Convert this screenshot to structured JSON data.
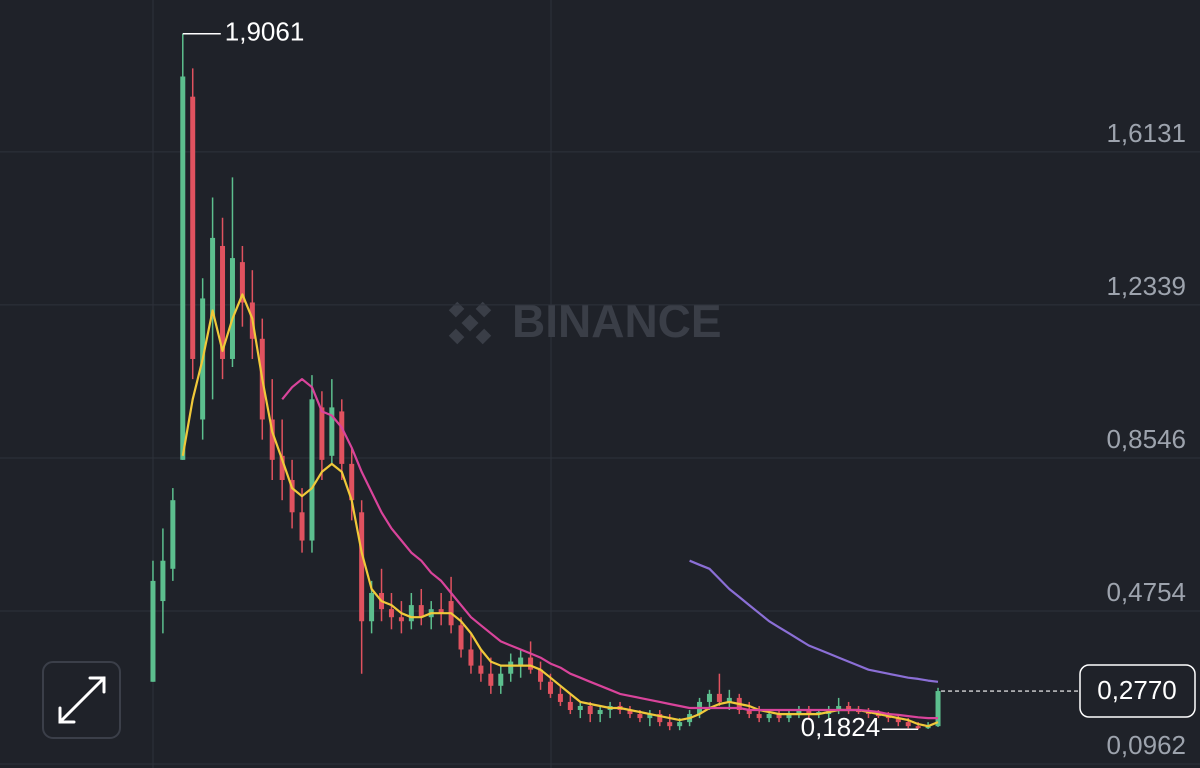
{
  "chart_data": {
    "type": "candlestick",
    "watermark": "BINANCE",
    "categories": [
      null,
      null,
      null,
      null,
      null,
      null,
      null,
      null,
      null,
      null,
      null,
      null,
      null,
      null,
      null,
      null,
      null,
      null,
      null,
      null,
      null,
      null,
      null,
      null,
      null,
      null,
      null,
      null,
      null,
      null,
      null,
      null,
      null,
      null,
      null,
      null,
      null,
      null,
      null,
      null,
      null,
      null,
      null,
      null,
      null,
      null,
      null,
      null,
      null,
      null,
      null,
      null,
      null,
      null,
      null,
      null,
      null,
      null,
      null,
      null,
      null,
      null,
      null,
      null,
      null,
      null,
      null,
      null,
      null,
      null,
      null,
      null,
      null,
      null,
      null,
      null,
      null,
      null,
      null,
      null
    ],
    "open": [
      0.3,
      0.5,
      0.58,
      0.85,
      1.75,
      0.95,
      1.2,
      1.38,
      1.1,
      1.34,
      1.24,
      1.15,
      0.95,
      0.86,
      0.8,
      0.72,
      0.65,
      0.98,
      0.86,
      0.97,
      0.84,
      0.72,
      0.45,
      0.52,
      0.48,
      0.46,
      0.45,
      0.49,
      0.46,
      0.48,
      0.5,
      0.44,
      0.38,
      0.34,
      0.32,
      0.29,
      0.32,
      0.34,
      0.36,
      0.33,
      0.3,
      0.27,
      0.25,
      0.23,
      0.24,
      0.22,
      0.23,
      0.24,
      0.23,
      0.22,
      0.21,
      0.22,
      0.2,
      0.19,
      0.2,
      0.22,
      0.25,
      0.27,
      0.25,
      0.26,
      0.23,
      0.22,
      0.21,
      0.22,
      0.21,
      0.22,
      0.23,
      0.22,
      0.22,
      0.23,
      0.24,
      0.23,
      0.225,
      0.22,
      0.215,
      0.21,
      0.2,
      0.19,
      0.185,
      0.19
    ],
    "high": [
      0.6,
      0.68,
      0.78,
      1.9061,
      1.82,
      1.3,
      1.5,
      1.45,
      1.55,
      1.38,
      1.32,
      1.2,
      1.05,
      0.95,
      0.85,
      0.78,
      1.06,
      1.02,
      1.05,
      1.0,
      0.88,
      0.75,
      0.55,
      0.58,
      0.52,
      0.5,
      0.52,
      0.53,
      0.5,
      0.52,
      0.56,
      0.46,
      0.42,
      0.38,
      0.36,
      0.34,
      0.37,
      0.38,
      0.4,
      0.35,
      0.32,
      0.29,
      0.27,
      0.25,
      0.25,
      0.24,
      0.25,
      0.25,
      0.24,
      0.23,
      0.23,
      0.23,
      0.22,
      0.21,
      0.23,
      0.26,
      0.28,
      0.32,
      0.28,
      0.27,
      0.25,
      0.24,
      0.23,
      0.23,
      0.23,
      0.24,
      0.24,
      0.23,
      0.24,
      0.26,
      0.25,
      0.24,
      0.235,
      0.23,
      0.225,
      0.22,
      0.21,
      0.2,
      0.2,
      0.285
    ],
    "low": [
      0.3,
      0.42,
      0.55,
      0.85,
      1.05,
      0.9,
      1.0,
      1.05,
      1.08,
      1.18,
      1.1,
      0.9,
      0.8,
      0.75,
      0.68,
      0.62,
      0.62,
      0.8,
      0.84,
      0.8,
      0.7,
      0.32,
      0.42,
      0.45,
      0.43,
      0.42,
      0.43,
      0.44,
      0.43,
      0.44,
      0.42,
      0.36,
      0.32,
      0.3,
      0.27,
      0.27,
      0.3,
      0.31,
      0.32,
      0.28,
      0.26,
      0.24,
      0.22,
      0.21,
      0.2,
      0.2,
      0.21,
      0.22,
      0.21,
      0.2,
      0.19,
      0.19,
      0.18,
      0.18,
      0.19,
      0.21,
      0.23,
      0.24,
      0.23,
      0.22,
      0.21,
      0.2,
      0.2,
      0.2,
      0.2,
      0.21,
      0.21,
      0.21,
      0.21,
      0.22,
      0.22,
      0.22,
      0.21,
      0.21,
      0.2,
      0.19,
      0.185,
      0.1824,
      0.183,
      0.188
    ],
    "close": [
      0.55,
      0.6,
      0.75,
      1.8,
      1.1,
      1.25,
      1.4,
      1.1,
      1.35,
      1.24,
      1.15,
      0.95,
      0.85,
      0.8,
      0.72,
      0.65,
      1.0,
      0.85,
      0.98,
      0.84,
      0.75,
      0.45,
      0.52,
      0.48,
      0.46,
      0.45,
      0.49,
      0.46,
      0.48,
      0.47,
      0.44,
      0.38,
      0.34,
      0.32,
      0.29,
      0.32,
      0.35,
      0.36,
      0.33,
      0.3,
      0.27,
      0.25,
      0.23,
      0.24,
      0.22,
      0.23,
      0.24,
      0.23,
      0.22,
      0.21,
      0.22,
      0.2,
      0.19,
      0.2,
      0.22,
      0.25,
      0.27,
      0.25,
      0.26,
      0.23,
      0.22,
      0.21,
      0.22,
      0.21,
      0.22,
      0.23,
      0.22,
      0.225,
      0.23,
      0.24,
      0.23,
      0.225,
      0.22,
      0.215,
      0.21,
      0.2,
      0.19,
      0.185,
      0.19,
      0.277
    ],
    "up_color": "#5cbf8e",
    "down_color": "#e0525f",
    "lines": [
      {
        "color": "#f0c93a",
        "values": [
          null,
          null,
          null,
          0.86,
          1.0,
          1.1,
          1.22,
          1.12,
          1.2,
          1.26,
          1.2,
          1.05,
          0.92,
          0.85,
          0.78,
          0.76,
          0.78,
          0.82,
          0.84,
          0.82,
          0.75,
          0.62,
          0.53,
          0.5,
          0.49,
          0.47,
          0.46,
          0.46,
          0.47,
          0.47,
          0.47,
          0.45,
          0.42,
          0.38,
          0.35,
          0.34,
          0.34,
          0.34,
          0.34,
          0.33,
          0.31,
          0.29,
          0.27,
          0.25,
          0.245,
          0.24,
          0.235,
          0.235,
          0.23,
          0.225,
          0.22,
          0.215,
          0.21,
          0.205,
          0.21,
          0.22,
          0.235,
          0.245,
          0.25,
          0.245,
          0.24,
          0.23,
          0.225,
          0.22,
          0.22,
          0.22,
          0.22,
          0.22,
          0.225,
          0.23,
          0.23,
          0.23,
          0.225,
          0.22,
          0.215,
          0.21,
          0.205,
          0.195,
          0.19,
          0.2
        ]
      },
      {
        "color": "#d9449b",
        "values": [
          null,
          null,
          null,
          null,
          null,
          null,
          null,
          null,
          null,
          null,
          null,
          null,
          null,
          1.0,
          1.03,
          1.05,
          1.03,
          0.97,
          0.96,
          0.93,
          0.88,
          0.82,
          0.77,
          0.72,
          0.68,
          0.65,
          0.62,
          0.6,
          0.57,
          0.55,
          0.52,
          0.49,
          0.46,
          0.44,
          0.42,
          0.4,
          0.39,
          0.38,
          0.37,
          0.36,
          0.345,
          0.335,
          0.32,
          0.31,
          0.3,
          0.29,
          0.28,
          0.27,
          0.265,
          0.26,
          0.255,
          0.25,
          0.245,
          0.24,
          0.235,
          0.235,
          0.235,
          0.235,
          0.235,
          0.235,
          0.23,
          0.23,
          0.23,
          0.23,
          0.23,
          0.23,
          0.23,
          0.23,
          0.23,
          0.23,
          0.23,
          0.23,
          0.228,
          0.225,
          0.22,
          0.218,
          0.215,
          0.212,
          0.21,
          0.21
        ]
      },
      {
        "color": "#8b6fd6",
        "values": [
          null,
          null,
          null,
          null,
          null,
          null,
          null,
          null,
          null,
          null,
          null,
          null,
          null,
          null,
          null,
          null,
          null,
          null,
          null,
          null,
          null,
          null,
          null,
          null,
          null,
          null,
          null,
          null,
          null,
          null,
          null,
          null,
          null,
          null,
          null,
          null,
          null,
          null,
          null,
          null,
          null,
          null,
          null,
          null,
          null,
          null,
          null,
          null,
          null,
          null,
          null,
          null,
          null,
          null,
          0.6,
          0.59,
          0.58,
          0.555,
          0.53,
          0.51,
          0.49,
          0.47,
          0.45,
          0.435,
          0.42,
          0.405,
          0.39,
          0.38,
          0.37,
          0.36,
          0.35,
          0.34,
          0.33,
          0.325,
          0.32,
          0.315,
          0.31,
          0.307,
          0.303,
          0.3
        ]
      }
    ],
    "annotations": [
      {
        "value": 1.9061,
        "label": "1,9061"
      },
      {
        "value": 0.1824,
        "label": "0,1824"
      }
    ],
    "last_price": {
      "value": 0.277,
      "label": "0,2770"
    },
    "ylim": [
      0.0863,
      1.9896
    ],
    "yticks": [
      {
        "value": 1.6131,
        "label": "1,6131"
      },
      {
        "value": 1.2339,
        "label": "1,2339"
      },
      {
        "value": 0.8546,
        "label": "0,8546"
      },
      {
        "value": 0.4754,
        "label": "0,4754"
      },
      {
        "value": 0.0962,
        "label": "0,0962"
      }
    ],
    "grid": true
  }
}
